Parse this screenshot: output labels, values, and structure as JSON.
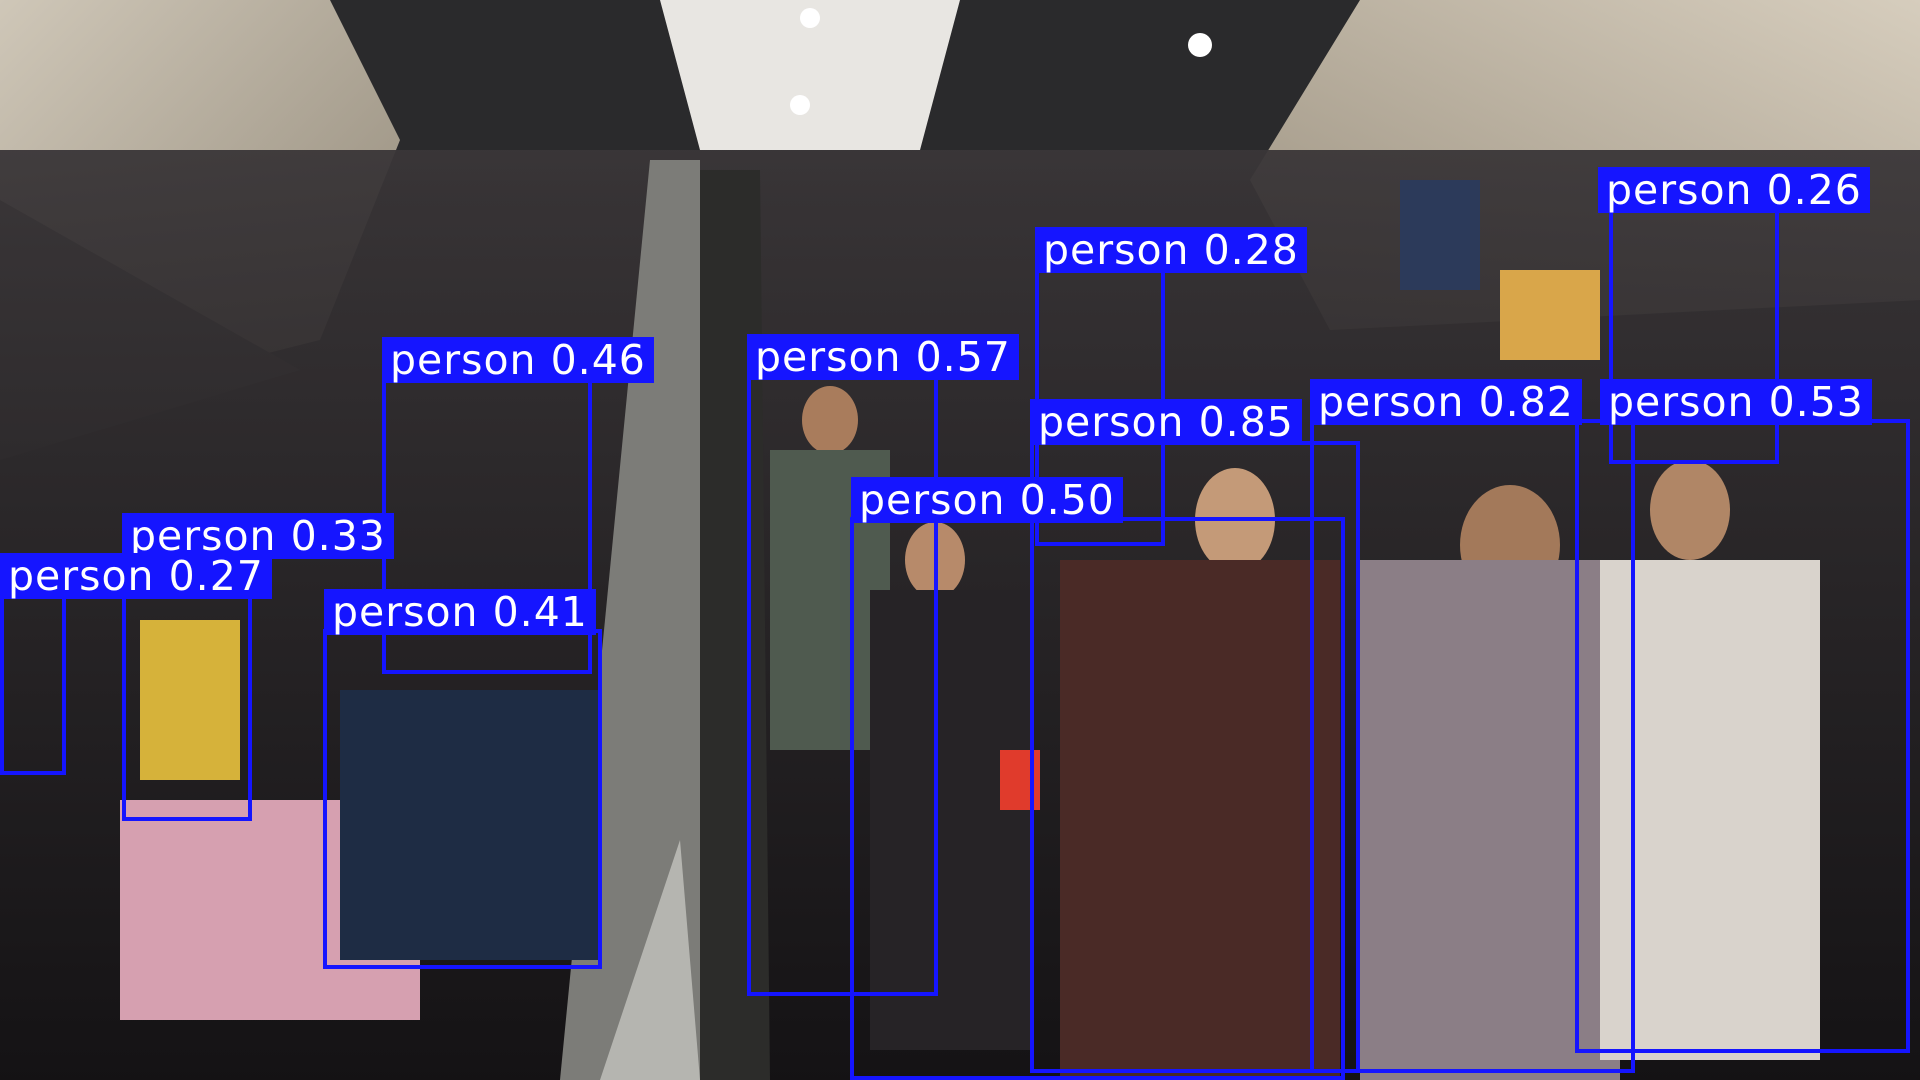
{
  "image": {
    "description_kind": "object-detection-overlay",
    "scene": "crowded metro station escalators and stairs"
  },
  "colors": {
    "box": "#1515ff",
    "label_text": "#ffffff"
  },
  "detections": [
    {
      "label": "person 0.26"
    },
    {
      "label": "person 0.28"
    },
    {
      "label": "person 0.46"
    },
    {
      "label": "person 0.57"
    },
    {
      "label": "person 0.85"
    },
    {
      "label": "person 0.82"
    },
    {
      "label": "person 0.53"
    },
    {
      "label": "person 0.50"
    },
    {
      "label": "person 0.33"
    },
    {
      "label": "person 0.27"
    },
    {
      "label": "person 0.41"
    }
  ]
}
